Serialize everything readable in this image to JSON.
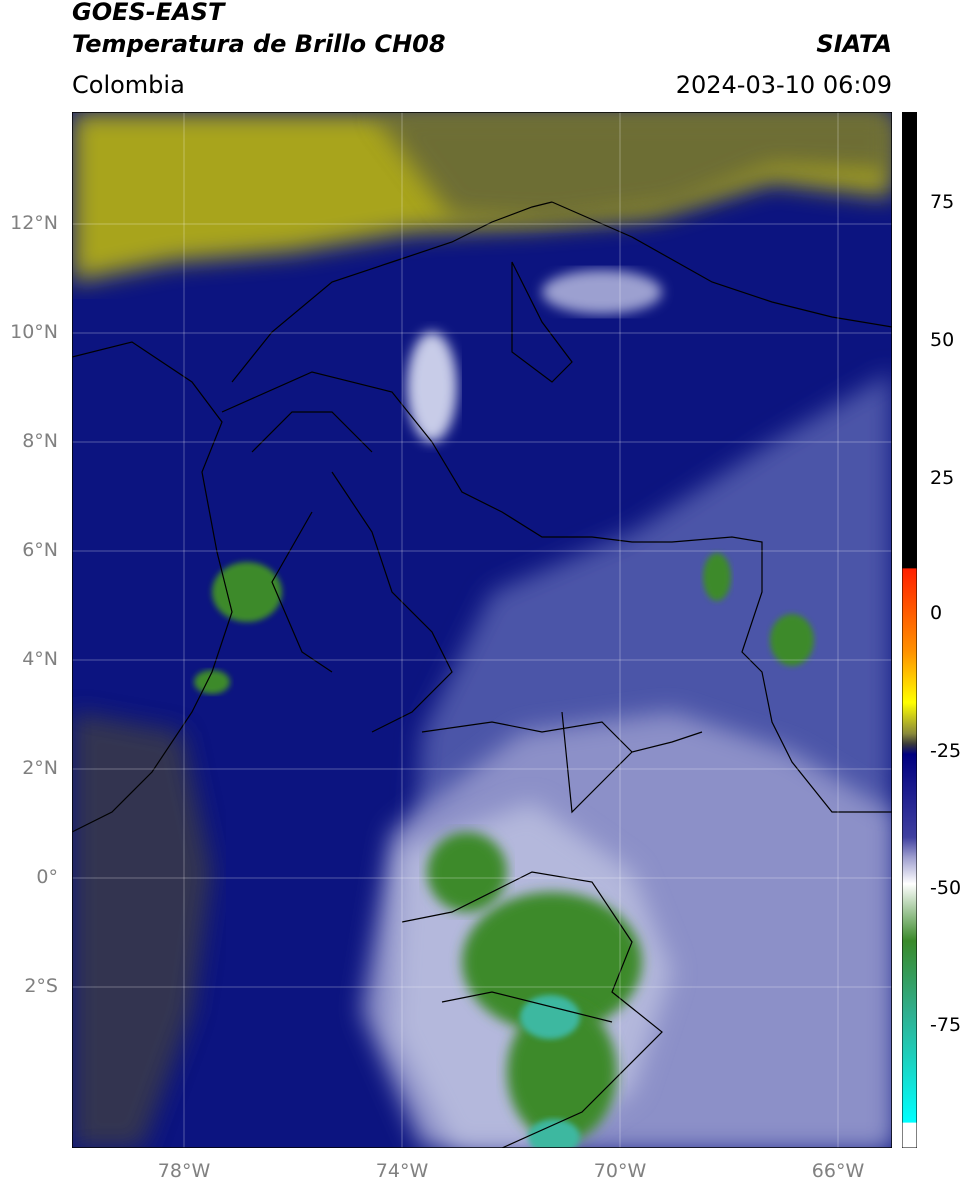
{
  "header": {
    "title_line1": "GOES-EAST",
    "title_line2": "Temperatura de Brillo CH08",
    "region": "Colombia",
    "brand": "SIATA",
    "timestamp": "2024-03-10 06:09"
  },
  "map": {
    "lat_ticks": [
      "12°N",
      "10°N",
      "8°N",
      "6°N",
      "4°N",
      "2°N",
      "0°",
      "2°S"
    ],
    "lon_ticks": [
      "78°W",
      "74°W",
      "70°W",
      "66°W"
    ],
    "gridlines": true,
    "colorbar": {
      "labels": [
        "75",
        "50",
        "25",
        "0",
        "-25",
        "-50",
        "-75"
      ],
      "stops": [
        {
          "color": "#000000"
        },
        {
          "color": "#000000"
        },
        {
          "color": "#ff2000"
        },
        {
          "color": "#ff9000"
        },
        {
          "color": "#ffff00"
        },
        {
          "color": "#8a8a3a"
        },
        {
          "color": "#3a3a3a"
        },
        {
          "color": "#000080"
        },
        {
          "color": "#4040a0"
        },
        {
          "color": "#a0a0d0"
        },
        {
          "color": "#ffffff"
        },
        {
          "color": "#3a8a2a"
        },
        {
          "color": "#30b090"
        },
        {
          "color": "#00ffff"
        },
        {
          "color": "#ffffff"
        }
      ]
    },
    "colors": {
      "warm_band": "#a8a41c",
      "deep_blue": "#0c1480",
      "mid_blue": "#4c54a8",
      "pale_blue": "#b4b8dc",
      "green": "#3c8a2c",
      "teal": "#3cb8a0"
    }
  }
}
